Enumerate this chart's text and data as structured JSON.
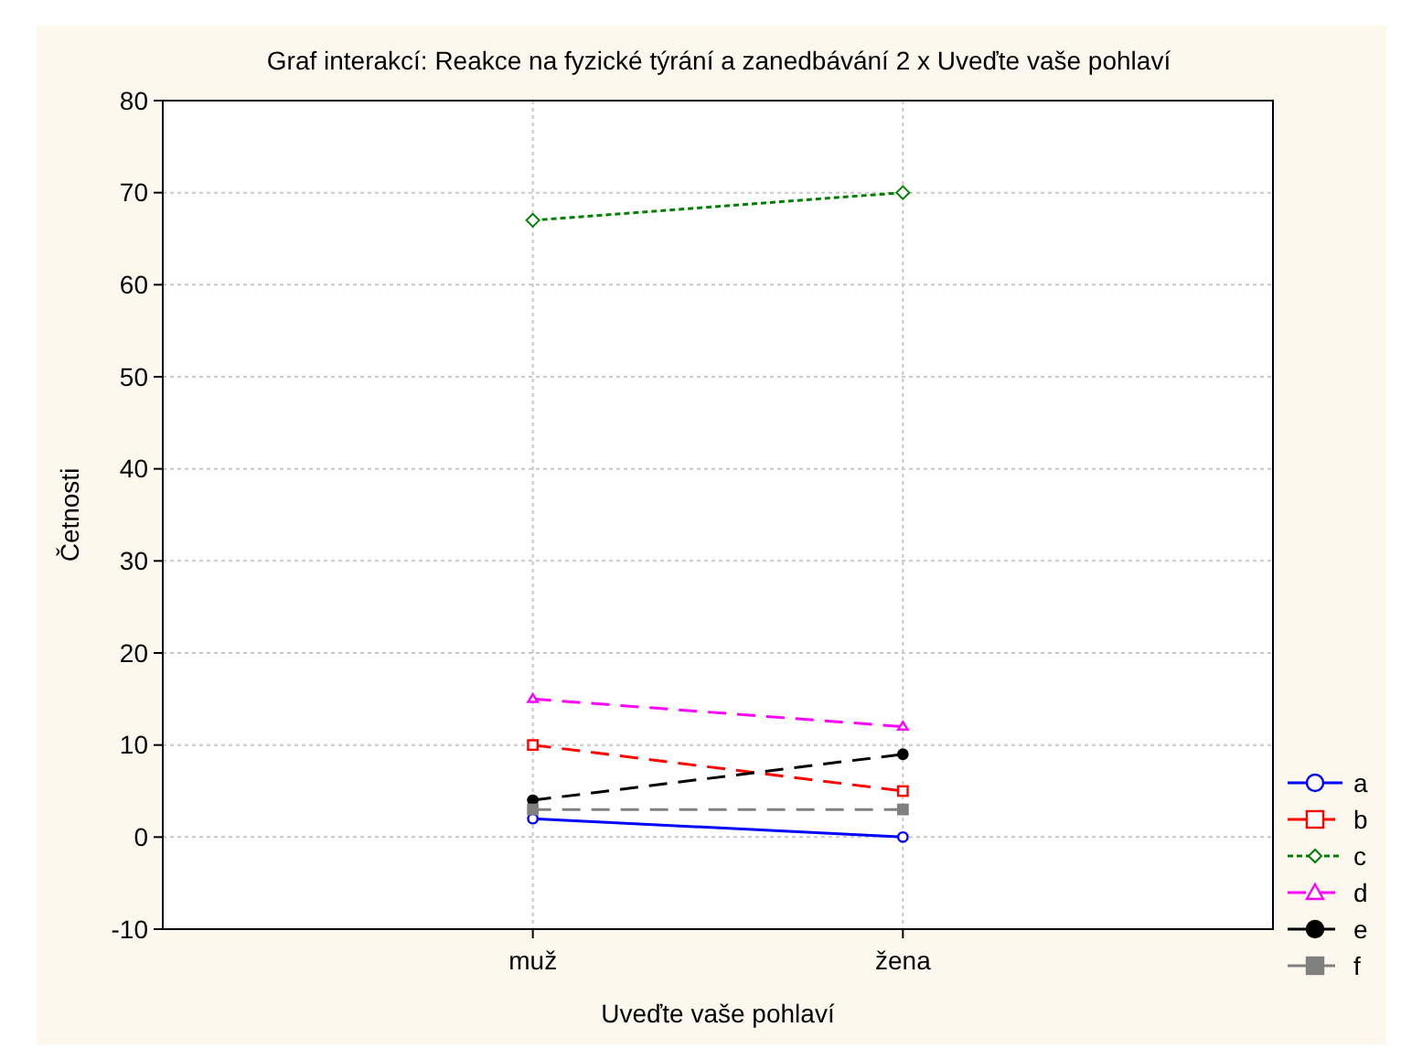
{
  "chart_data": {
    "type": "line",
    "title": "Graf interakcí: Reakce na fyzické týrání a zanedbávání 2 x Uveďte vaše pohlaví",
    "xlabel": "Uveďte vaše pohlaví",
    "ylabel": "Četnosti",
    "categories": [
      "muž",
      "žena"
    ],
    "series": [
      {
        "name": "a",
        "color": "#0000ff",
        "values": [
          2,
          0
        ],
        "marker": "circle",
        "line_style": "solid"
      },
      {
        "name": "b",
        "color": "#ff0000",
        "values": [
          10,
          5
        ],
        "marker": "square",
        "line_style": "dashed"
      },
      {
        "name": "c",
        "color": "#008000",
        "values": [
          67,
          70
        ],
        "marker": "diamond",
        "line_style": "dotted"
      },
      {
        "name": "d",
        "color": "#ff00ff",
        "values": [
          15,
          12
        ],
        "marker": "triangle",
        "line_style": "dashed"
      },
      {
        "name": "e",
        "color": "#000000",
        "values": [
          4,
          9
        ],
        "marker": "circle",
        "line_style": "dashed"
      },
      {
        "name": "f",
        "color": "#808080",
        "values": [
          3,
          3
        ],
        "marker": "square",
        "line_style": "dashed"
      }
    ],
    "ylim": [
      -10,
      80
    ],
    "yticks": [
      -10,
      0,
      10,
      20,
      30,
      40,
      50,
      60,
      70,
      80
    ],
    "grid": true,
    "legend": "right"
  }
}
